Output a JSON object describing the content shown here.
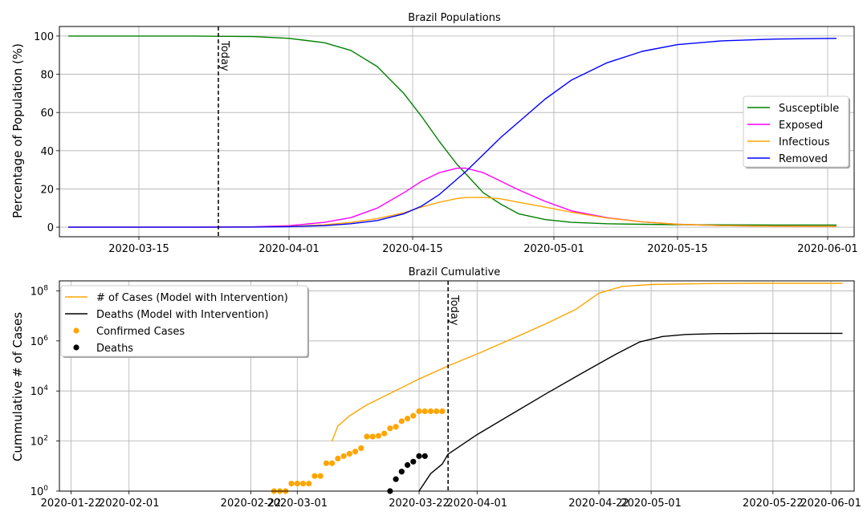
{
  "chart_data": [
    {
      "type": "line",
      "title": "Brazil Populations",
      "xlabel": "",
      "ylabel": "Percentage of Population (%)",
      "x_axis": "date",
      "xlim": [
        "2020-03-06",
        "2020-06-04"
      ],
      "ylim": [
        -5,
        105
      ],
      "x_ticks": [
        "2020-03-15",
        "2020-04-01",
        "2020-04-15",
        "2020-05-01",
        "2020-05-15",
        "2020-06-01"
      ],
      "y_ticks": [
        0,
        20,
        40,
        60,
        80,
        100
      ],
      "grid": true,
      "legend_position": "center-right",
      "today": {
        "date": "2020-03-24",
        "label": "Today"
      },
      "x": [
        "2020-03-07",
        "2020-03-14",
        "2020-03-21",
        "2020-03-28",
        "2020-04-01",
        "2020-04-05",
        "2020-04-08",
        "2020-04-11",
        "2020-04-14",
        "2020-04-16",
        "2020-04-18",
        "2020-04-20",
        "2020-04-21",
        "2020-04-23",
        "2020-04-25",
        "2020-04-27",
        "2020-04-30",
        "2020-05-03",
        "2020-05-07",
        "2020-05-11",
        "2020-05-15",
        "2020-05-20",
        "2020-05-26",
        "2020-06-02"
      ],
      "series": [
        {
          "name": "Susceptible",
          "color": "#008000",
          "values": [
            100,
            100,
            100,
            99.7,
            98.8,
            96.5,
            92.5,
            84,
            70,
            58,
            45,
            33,
            28,
            18,
            12,
            7,
            4,
            2.5,
            1.8,
            1.5,
            1.3,
            1.2,
            1.1,
            1.1
          ]
        },
        {
          "name": "Exposed",
          "color": "#ff00ff",
          "values": [
            0,
            0,
            0,
            0.2,
            0.8,
            2.5,
            5,
            10,
            18,
            24,
            28.5,
            30.8,
            30.9,
            28.5,
            24,
            19.5,
            13.5,
            8.5,
            5,
            2.8,
            1.5,
            0.8,
            0.5,
            0.4
          ]
        },
        {
          "name": "Infectious",
          "color": "#ffa500",
          "values": [
            0,
            0,
            0,
            0.1,
            0.4,
            1.2,
            2.5,
            4.5,
            7.5,
            10.5,
            13,
            15,
            15.5,
            15.6,
            14.8,
            13,
            10.5,
            7.8,
            4.8,
            2.8,
            1.5,
            0.8,
            0.5,
            0.4
          ]
        },
        {
          "name": "Removed",
          "color": "#0000ff",
          "values": [
            0,
            0,
            0,
            0.1,
            0.3,
            0.8,
            1.8,
            3.5,
            7,
            11,
            17,
            25,
            29,
            38,
            47,
            55,
            67,
            77,
            86,
            92,
            95.5,
            97.5,
            98.4,
            98.8
          ]
        }
      ]
    },
    {
      "type": "line",
      "title": "Brazil Cumulative",
      "xlabel": "",
      "ylabel": "Cummulative # of Cases",
      "x_axis": "date",
      "y_scale": "log",
      "xlim": [
        "2020-01-20",
        "2020-06-05"
      ],
      "ylim": [
        1,
        250000000
      ],
      "x_ticks": [
        "2020-01-22",
        "2020-02-01",
        "2020-02-22",
        "2020-03-01",
        "2020-03-22",
        "2020-04-01",
        "2020-04-22",
        "2020-05-01",
        "2020-05-22",
        "2020-06-01"
      ],
      "y_ticks": [
        {
          "value": 1,
          "base": "10",
          "exp": "0"
        },
        {
          "value": 100,
          "base": "10",
          "exp": "2"
        },
        {
          "value": 10000,
          "base": "10",
          "exp": "4"
        },
        {
          "value": 1000000,
          "base": "10",
          "exp": "6"
        },
        {
          "value": 100000000,
          "base": "10",
          "exp": "8"
        }
      ],
      "grid": true,
      "legend_position": "top-left",
      "today": {
        "date": "2020-03-27",
        "label": "Today"
      },
      "series": [
        {
          "name": "# of Cases (Model with Intervention)",
          "style": "line",
          "color": "#ffa500",
          "x": [
            "2020-03-07",
            "2020-03-08",
            "2020-03-10",
            "2020-03-13",
            "2020-03-17",
            "2020-03-22",
            "2020-03-27",
            "2020-04-01",
            "2020-04-07",
            "2020-04-13",
            "2020-04-18",
            "2020-04-22",
            "2020-04-26",
            "2020-05-01",
            "2020-05-10",
            "2020-05-20",
            "2020-06-03"
          ],
          "values": [
            100,
            400,
            1000,
            2800,
            8000,
            30000,
            100000,
            300000,
            1200000,
            5000000,
            18000000,
            80000000,
            150000000,
            180000000,
            195000000,
            200000000,
            200000000
          ]
        },
        {
          "name": "Deaths (Model with Intervention)",
          "style": "line",
          "color": "#000000",
          "x": [
            "2020-03-22",
            "2020-03-24",
            "2020-03-26",
            "2020-03-27",
            "2020-04-01",
            "2020-04-07",
            "2020-04-13",
            "2020-04-19",
            "2020-04-25",
            "2020-04-29",
            "2020-05-03",
            "2020-05-07",
            "2020-05-12",
            "2020-05-20",
            "2020-06-03"
          ],
          "values": [
            1,
            5,
            12,
            30,
            180,
            1200,
            8000,
            50000,
            300000,
            900000,
            1500000,
            1800000,
            1950000,
            2000000,
            2000000
          ]
        },
        {
          "name": "Confirmed Cases",
          "style": "points",
          "color": "#ffa500",
          "x": [
            "2020-02-26",
            "2020-02-27",
            "2020-02-28",
            "2020-02-29",
            "2020-03-01",
            "2020-03-02",
            "2020-03-03",
            "2020-03-04",
            "2020-03-05",
            "2020-03-06",
            "2020-03-07",
            "2020-03-08",
            "2020-03-09",
            "2020-03-10",
            "2020-03-11",
            "2020-03-12",
            "2020-03-13",
            "2020-03-14",
            "2020-03-15",
            "2020-03-16",
            "2020-03-17",
            "2020-03-18",
            "2020-03-19",
            "2020-03-20",
            "2020-03-21",
            "2020-03-22",
            "2020-03-23",
            "2020-03-24",
            "2020-03-25",
            "2020-03-26"
          ],
          "values": [
            1,
            1,
            1,
            2,
            2,
            2,
            2,
            4,
            4,
            13,
            13,
            20,
            25,
            31,
            38,
            52,
            151,
            151,
            162,
            200,
            321,
            372,
            621,
            793,
            1021,
            1546,
            1546,
            1546,
            1546,
            1546
          ]
        },
        {
          "name": "Deaths",
          "style": "points",
          "color": "#000000",
          "x": [
            "2020-03-17",
            "2020-03-18",
            "2020-03-19",
            "2020-03-20",
            "2020-03-21",
            "2020-03-22",
            "2020-03-23"
          ],
          "values": [
            1,
            3,
            6,
            11,
            15,
            25,
            25
          ]
        }
      ]
    }
  ]
}
